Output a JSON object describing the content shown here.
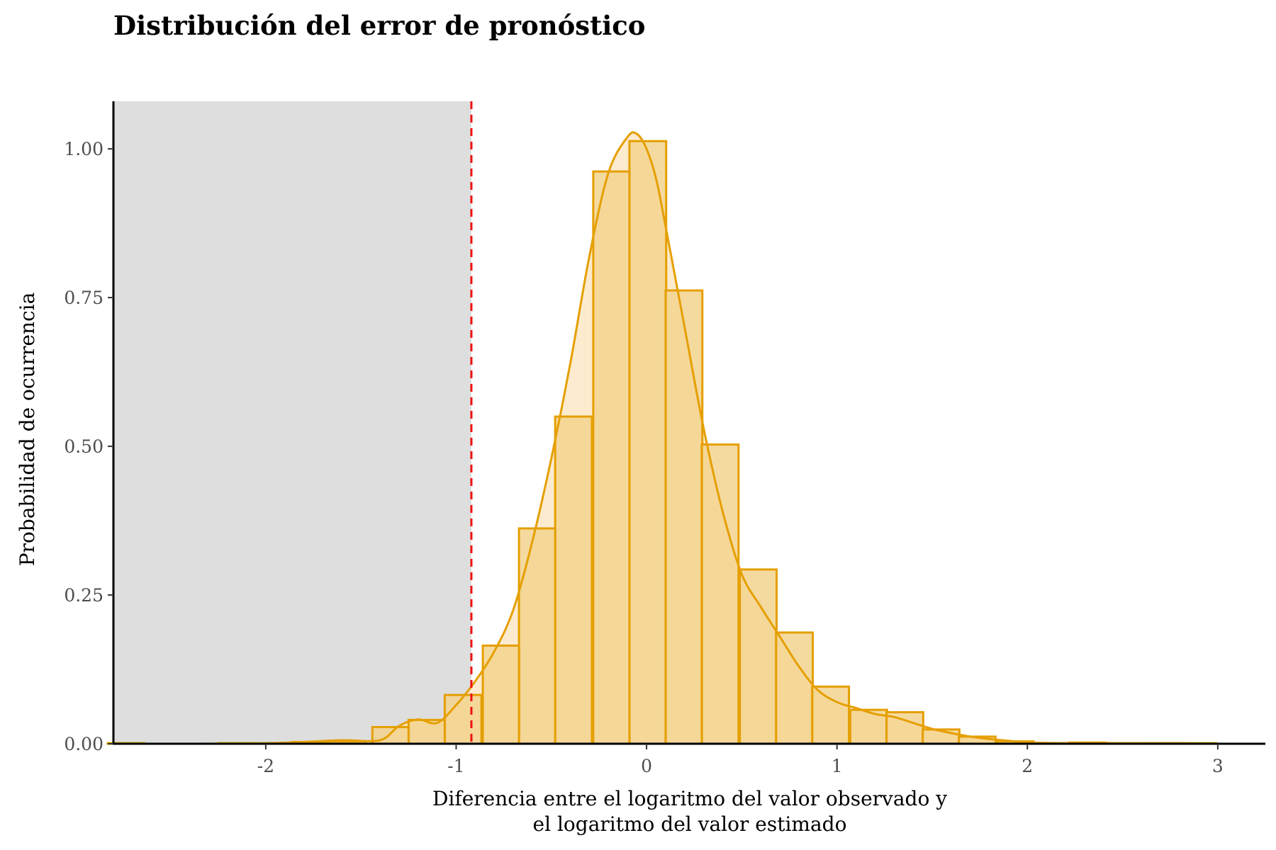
{
  "chart_data": {
    "type": "bar",
    "title": "Distribución del error de pronóstico",
    "xlabel": [
      "Diferencia entre el logaritmo del valor observado y",
      "el logaritmo del valor estimado"
    ],
    "ylabel": "Probabilidad de ocurrencia",
    "xlim": [
      -2.8,
      3.25
    ],
    "ylim": [
      0,
      1.08
    ],
    "x_ticks": [
      -2,
      -1,
      0,
      1,
      2,
      3
    ],
    "x_tick_labels": [
      "-2",
      "-1",
      "0",
      "1",
      "2",
      "3"
    ],
    "y_ticks": [
      0,
      0.25,
      0.5,
      0.75,
      1.0
    ],
    "y_tick_labels": [
      "0.00",
      "0.25",
      "0.50",
      "0.75",
      "1.00"
    ],
    "grid": false,
    "histogram": {
      "bin_width": 0.193,
      "bins": [
        {
          "x0": -2.83,
          "value": 0.001
        },
        {
          "x0": -2.25,
          "value": 0.001
        },
        {
          "x0": -1.86,
          "value": 0.003
        },
        {
          "x0": -1.67,
          "value": 0.004
        },
        {
          "x0": -1.44,
          "value": 0.028
        },
        {
          "x0": -1.25,
          "value": 0.04
        },
        {
          "x0": -1.06,
          "value": 0.082
        },
        {
          "x0": -0.86,
          "value": 0.165
        },
        {
          "x0": -0.67,
          "value": 0.362
        },
        {
          "x0": -0.48,
          "value": 0.55
        },
        {
          "x0": -0.28,
          "value": 0.962
        },
        {
          "x0": -0.09,
          "value": 1.013
        },
        {
          "x0": 0.1,
          "value": 0.762
        },
        {
          "x0": 0.29,
          "value": 0.503
        },
        {
          "x0": 0.49,
          "value": 0.293
        },
        {
          "x0": 0.68,
          "value": 0.187
        },
        {
          "x0": 0.87,
          "value": 0.096
        },
        {
          "x0": 1.07,
          "value": 0.057
        },
        {
          "x0": 1.26,
          "value": 0.053
        },
        {
          "x0": 1.45,
          "value": 0.024
        },
        {
          "x0": 1.64,
          "value": 0.012
        },
        {
          "x0": 1.84,
          "value": 0.004
        },
        {
          "x0": 2.03,
          "value": 0.001
        },
        {
          "x0": 2.22,
          "value": 0.002
        },
        {
          "x0": 2.42,
          "value": 0.001
        },
        {
          "x0": 2.61,
          "value": 0.001
        },
        {
          "x0": 2.8,
          "value": 0.001
        }
      ]
    },
    "density_curve": {
      "x": [
        -2.8,
        -2.4,
        -2.0,
        -1.8,
        -1.6,
        -1.4,
        -1.3,
        -1.2,
        -1.1,
        -1.0,
        -0.9,
        -0.8,
        -0.7,
        -0.6,
        -0.5,
        -0.4,
        -0.3,
        -0.2,
        -0.1,
        -0.05,
        0.0,
        0.05,
        0.1,
        0.2,
        0.3,
        0.4,
        0.5,
        0.6,
        0.7,
        0.8,
        0.9,
        1.0,
        1.1,
        1.2,
        1.3,
        1.4,
        1.5,
        1.6,
        1.7,
        1.8,
        1.9,
        2.0,
        2.2,
        2.4,
        2.6,
        2.8,
        3.0
      ],
      "y": [
        0.0,
        0.0,
        0.001,
        0.003,
        0.006,
        0.006,
        0.03,
        0.041,
        0.035,
        0.065,
        0.105,
        0.155,
        0.225,
        0.34,
        0.48,
        0.64,
        0.82,
        0.96,
        1.02,
        1.025,
        1.0,
        0.95,
        0.87,
        0.7,
        0.53,
        0.39,
        0.285,
        0.23,
        0.18,
        0.13,
        0.09,
        0.07,
        0.06,
        0.05,
        0.045,
        0.035,
        0.025,
        0.018,
        0.012,
        0.008,
        0.005,
        0.002,
        0.001,
        0.001,
        0.001,
        0.001,
        0.0
      ]
    },
    "shaded_region": {
      "x0": -2.8,
      "x1": -0.92
    },
    "reference_line": {
      "x": -0.92,
      "style": "dashed"
    },
    "colors": {
      "bar_fill": "#f3d48e",
      "bar_stroke": "#e59f00",
      "curve": "#e59f00",
      "curve_fill": "#fbe8c5",
      "shaded_region": "#dedede",
      "reference_line": "#ee1111"
    }
  }
}
